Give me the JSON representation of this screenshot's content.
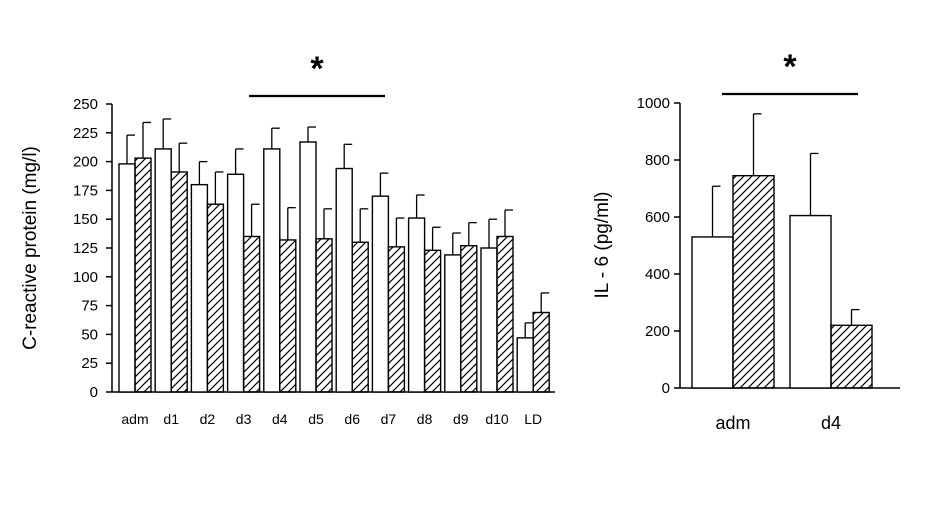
{
  "chart_data": [
    {
      "type": "bar",
      "ylabel": "C-reactive protein (mg/l)",
      "ylim": [
        0,
        250
      ],
      "yticks": [
        0,
        25,
        50,
        75,
        100,
        125,
        150,
        175,
        200,
        225,
        250
      ],
      "categories": [
        "adm",
        "d1",
        "d2",
        "d3",
        "d4",
        "d5",
        "d6",
        "d7",
        "d8",
        "d9",
        "d10",
        "LD"
      ],
      "series": [
        {
          "fill": "white",
          "values": [
            198,
            211,
            180,
            189,
            211,
            217,
            194,
            170,
            151,
            119,
            125,
            47
          ],
          "errors": [
            25,
            26,
            20,
            22,
            18,
            13,
            21,
            20,
            20,
            19,
            25,
            13
          ]
        },
        {
          "fill": "hatched",
          "values": [
            203,
            191,
            163,
            135,
            132,
            133,
            130,
            126,
            123,
            127,
            135,
            69
          ],
          "errors": [
            31,
            25,
            28,
            28,
            28,
            26,
            29,
            25,
            20,
            20,
            23,
            17
          ]
        }
      ],
      "annotations": [
        {
          "text": "*",
          "span": [
            "d3",
            "d7"
          ]
        }
      ]
    },
    {
      "type": "bar",
      "ylabel": "IL - 6 (pg/ml)",
      "ylim": [
        0,
        1000
      ],
      "yticks": [
        0,
        200,
        400,
        600,
        800,
        1000
      ],
      "categories": [
        "adm",
        "d4"
      ],
      "series": [
        {
          "fill": "white",
          "values": [
            530,
            605
          ],
          "errors": [
            178,
            218
          ]
        },
        {
          "fill": "hatched",
          "values": [
            745,
            220
          ],
          "errors": [
            217,
            55
          ]
        }
      ],
      "annotations": [
        {
          "text": "*",
          "span": [
            "adm",
            "d4"
          ]
        }
      ]
    }
  ]
}
